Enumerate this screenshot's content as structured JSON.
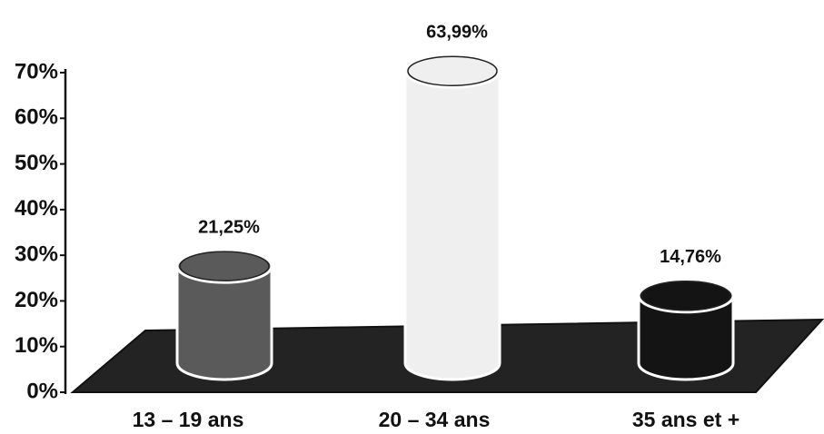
{
  "chart_data": {
    "type": "bar3d",
    "categories": [
      "13 – 19 ans",
      "20 – 34 ans",
      "35 ans et +"
    ],
    "values": [
      21.25,
      63.99,
      14.76
    ],
    "value_labels": [
      "21,25%",
      "63,99%",
      "14,76%"
    ],
    "colors": [
      "#5a5a5a",
      "#efefef",
      "#141414"
    ],
    "ylim": [
      0,
      70
    ],
    "yticks": [
      {
        "value": 0,
        "label": "0%"
      },
      {
        "value": 10,
        "label": "10%"
      },
      {
        "value": 20,
        "label": "20%"
      },
      {
        "value": 30,
        "label": "30%"
      },
      {
        "value": 40,
        "label": "40%"
      },
      {
        "value": 50,
        "label": "50%"
      },
      {
        "value": 60,
        "label": "60%"
      },
      {
        "value": 70,
        "label": "70%"
      }
    ]
  }
}
